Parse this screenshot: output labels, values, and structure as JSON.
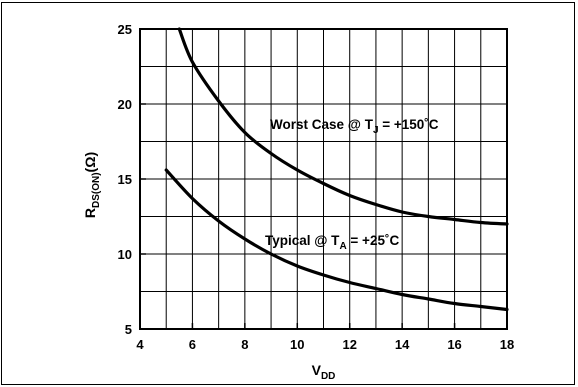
{
  "chart_data": {
    "type": "line",
    "xlabel": {
      "main": "V",
      "sub": "DD"
    },
    "ylabel": {
      "main": "R",
      "sub": "DS(ON)",
      "unit": "(Ω)"
    },
    "xlim": [
      4,
      18
    ],
    "ylim": [
      5,
      25
    ],
    "x_ticks": [
      "4",
      "6",
      "8",
      "10",
      "12",
      "14",
      "16",
      "18"
    ],
    "y_ticks": [
      "5",
      "10",
      "15",
      "20",
      "25"
    ],
    "grid": true,
    "series": [
      {
        "label": {
          "main": "Worst Case @ T",
          "sub": "J",
          "tail": " = +150˚C"
        },
        "x": [
          5.5,
          6,
          7,
          8,
          9,
          10,
          11,
          12,
          13,
          14,
          15,
          16,
          17,
          18
        ],
        "y": [
          25.0,
          22.8,
          20.2,
          18.1,
          16.7,
          15.6,
          14.7,
          13.9,
          13.3,
          12.8,
          12.5,
          12.3,
          12.1,
          12.0
        ]
      },
      {
        "label": {
          "main": "Typical @ T",
          "sub": "A",
          "tail": " = +25˚C"
        },
        "x": [
          5,
          6,
          7,
          8,
          9,
          10,
          11,
          12,
          13,
          14,
          15,
          16,
          17,
          18
        ],
        "y": [
          15.6,
          13.7,
          12.2,
          11.0,
          10.0,
          9.2,
          8.6,
          8.1,
          7.7,
          7.3,
          7.0,
          6.7,
          6.5,
          6.3
        ]
      }
    ]
  }
}
